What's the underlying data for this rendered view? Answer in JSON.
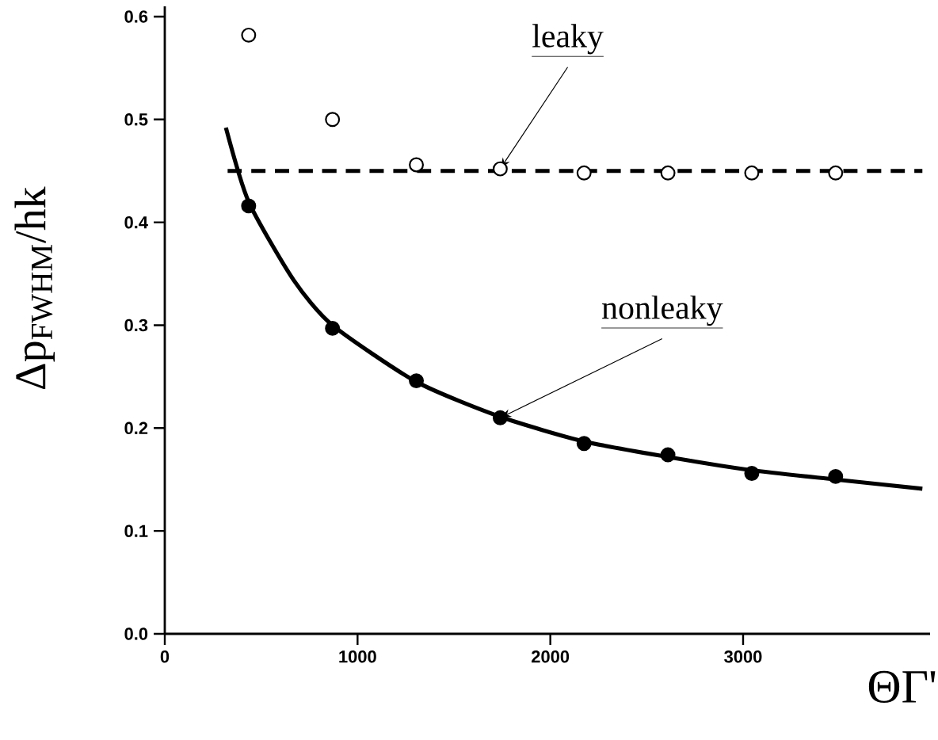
{
  "chart_data": {
    "type": "scatter",
    "xlabel": "ΘΓ'",
    "ylabel": "Δp$_{FWHM}$/hk",
    "xlim": [
      0,
      3970
    ],
    "ylim": [
      0,
      0.61
    ],
    "xticks": [
      0,
      1000,
      2000,
      3000
    ],
    "yticks": [
      {
        "value": 0,
        "label": "0.0"
      },
      0.1,
      0.2,
      0.3,
      0.4,
      0.5,
      0.6
    ],
    "grid": false,
    "series": [
      {
        "type": "scatter",
        "marker": "circle",
        "color": "#ffffff",
        "x": [
          435,
          870,
          1305,
          1740,
          2175,
          2610,
          3045,
          3480
        ],
        "values": [
          0.582,
          0.5,
          0.456,
          0.452,
          0.448,
          0.448,
          0.448,
          0.448
        ]
      },
      {
        "type": "scatter",
        "marker": "circle",
        "color": "#000000",
        "x": [
          435,
          870,
          1305,
          1740,
          2175,
          2610,
          3045,
          3480
        ],
        "values": [
          0.416,
          0.297,
          0.246,
          0.21,
          0.185,
          0.174,
          0.156,
          0.153
        ]
      },
      {
        "type": "line",
        "marker": "none",
        "line_style": "solid",
        "color": "#000000",
        "x": [
          317,
          435,
          668,
          870,
          1305,
          1740,
          2175,
          2610,
          3045,
          3480,
          3930
        ],
        "values": [
          0.492,
          0.42,
          0.344,
          0.3,
          0.245,
          0.211,
          0.187,
          0.172,
          0.159,
          0.15,
          0.141
        ]
      },
      {
        "type": "line",
        "marker": "none",
        "line_style": "dashed",
        "color": "#000000",
        "x": [
          326,
          3930
        ],
        "values": [
          0.45,
          0.45
        ]
      }
    ],
    "annotations": [
      {
        "text": "leaky",
        "x": 1740,
        "y": 0.452
      },
      {
        "text": "nonleaky",
        "x": 1740,
        "y": 0.21
      }
    ]
  }
}
